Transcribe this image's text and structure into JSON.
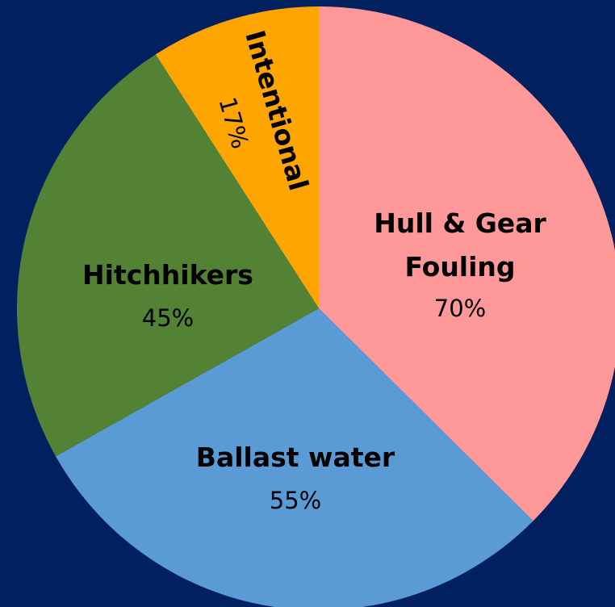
{
  "colors": {
    "background": "#002060"
  },
  "chart_data": {
    "type": "pie",
    "title": "",
    "slices": [
      {
        "category": "Hull & Gear",
        "category_line2": "Fouling",
        "label": "70%",
        "value": 70,
        "color": "#FF9999"
      },
      {
        "category": "Ballast water",
        "label": "55%",
        "value": 55,
        "color": "#5B9BD5"
      },
      {
        "category": "Hitchhikers",
        "label": "45%",
        "value": 45,
        "color": "#548235"
      },
      {
        "category": "Intentional",
        "label": "17%",
        "value": 17,
        "color": "#FFA500"
      }
    ],
    "start_angle_deg": 0,
    "direction": "clockwise",
    "legend": "none"
  }
}
